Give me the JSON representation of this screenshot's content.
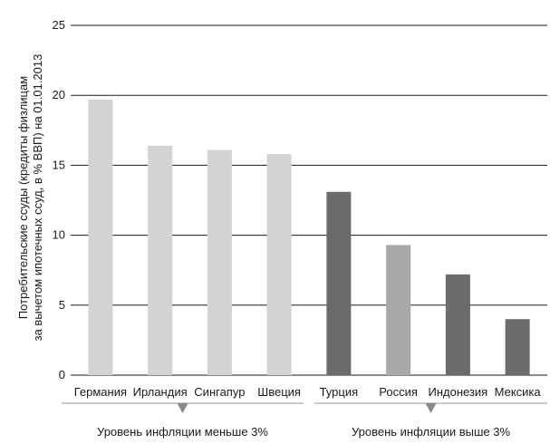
{
  "chart_data": {
    "type": "bar",
    "ylabel_line1": "Потребительские ссуды (кредиты физлицам",
    "ylabel_line2": "за вычетом ипотечных ссуд, в % ВВП) на 01.01.2013",
    "ylim": [
      0,
      25
    ],
    "yticks": [
      0,
      5,
      10,
      15,
      20,
      25
    ],
    "grid": true,
    "categories": [
      "Германия",
      "Ирландия",
      "Сингапур",
      "Швеция",
      "Турция",
      "Россия",
      "Индонезия",
      "Мексика"
    ],
    "values": [
      19.7,
      16.4,
      16.1,
      15.8,
      13.1,
      9.3,
      7.2,
      4.0
    ],
    "bar_colors": [
      "#d3d3d3",
      "#d3d3d3",
      "#d3d3d3",
      "#d3d3d3",
      "#6b6b6d",
      "#a9a9ab",
      "#6b6b6d",
      "#6b6b6d"
    ],
    "groups": [
      {
        "label": "Уровень инфляции меньше 3%",
        "categories": [
          "Германия",
          "Ирландия",
          "Сингапур",
          "Швеция"
        ]
      },
      {
        "label": "Уровень инфляции выше 3%",
        "categories": [
          "Турция",
          "Россия",
          "Индонезия",
          "Мексика"
        ]
      }
    ],
    "colors": {
      "grid": "#1a1a1a",
      "bracket": "#9a9a9a",
      "marker": "#8a8a8a"
    }
  }
}
